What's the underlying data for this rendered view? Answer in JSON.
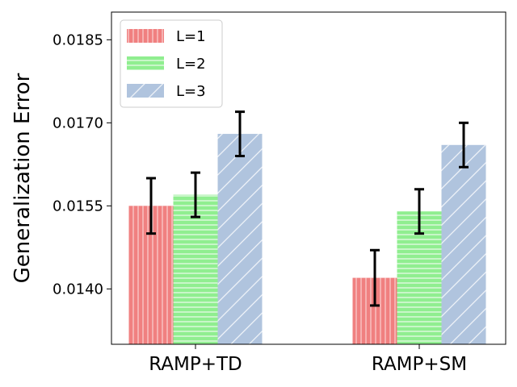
{
  "chart_data": {
    "type": "bar",
    "categories": [
      "RAMP+TD",
      "RAMP+SM"
    ],
    "series": [
      {
        "name": "L=1",
        "values": [
          0.0155,
          0.0142
        ],
        "errors": [
          0.0005,
          0.0005
        ],
        "color": "#f08080",
        "hatch": "vertical"
      },
      {
        "name": "L=2",
        "values": [
          0.0157,
          0.0154
        ],
        "errors": [
          0.0004,
          0.0004
        ],
        "color": "#90ee90",
        "hatch": "horizontal"
      },
      {
        "name": "L=3",
        "values": [
          0.0168,
          0.0166
        ],
        "errors": [
          0.0004,
          0.0004
        ],
        "color": "#b0c4de",
        "hatch": "diagonal"
      }
    ],
    "ylabel": "Generalization Error",
    "xlabel": "",
    "yticks": [
      "0.0140",
      "0.0155",
      "0.0170",
      "0.0185"
    ],
    "ylim": [
      0.013,
      0.019
    ],
    "legend": "top-left",
    "grid": false
  }
}
